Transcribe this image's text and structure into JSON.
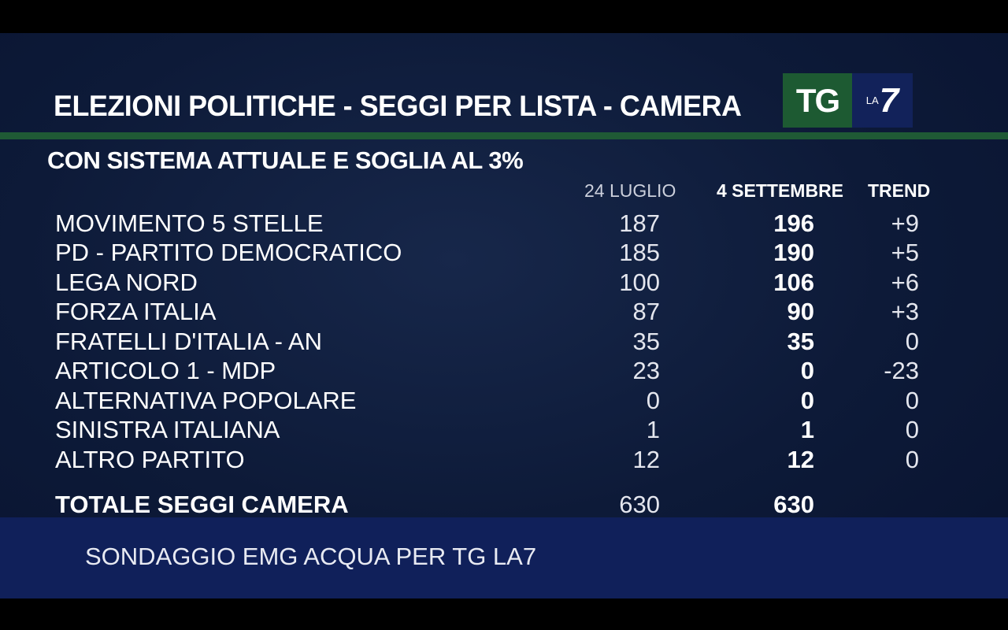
{
  "title": "ELEZIONI POLITICHE - SEGGI  PER  LISTA - CAMERA",
  "subtitle": "CON SISTEMA ATTUALE E SOGLIA AL 3%",
  "logo": {
    "tg": "TG",
    "la": "LA",
    "seven": "7"
  },
  "columns": {
    "prev": "24 LUGLIO",
    "curr": "4 SETTEMBRE",
    "trend": "TREND"
  },
  "rows": [
    {
      "name": "MOVIMENTO 5 STELLE",
      "prev": "187",
      "curr": "196",
      "trend": "+9"
    },
    {
      "name": "PD - PARTITO DEMOCRATICO",
      "prev": "185",
      "curr": "190",
      "trend": "+5"
    },
    {
      "name": "LEGA NORD",
      "prev": "100",
      "curr": "106",
      "trend": "+6"
    },
    {
      "name": "FORZA ITALIA",
      "prev": "87",
      "curr": "90",
      "trend": "+3"
    },
    {
      "name": "FRATELLI D'ITALIA - AN",
      "prev": "35",
      "curr": "35",
      "trend": "0"
    },
    {
      "name": "ARTICOLO 1  - MDP",
      "prev": "23",
      "curr": "0",
      "trend": "-23"
    },
    {
      "name": "ALTERNATIVA POPOLARE",
      "prev": "0",
      "curr": "0",
      "trend": "0"
    },
    {
      "name": "SINISTRA ITALIANA",
      "prev": "1",
      "curr": "1",
      "trend": "0"
    },
    {
      "name": "ALTRO PARTITO",
      "prev": "12",
      "curr": "12",
      "trend": "0"
    }
  ],
  "total": {
    "name": "TOTALE SEGGI CAMERA",
    "prev": "630",
    "curr": "630"
  },
  "footer": "SONDAGGIO EMG ACQUA PER TG LA7",
  "colors": {
    "background": "#0d1a38",
    "accent_green": "#1f5a35",
    "footer_blue": "#10205a"
  }
}
